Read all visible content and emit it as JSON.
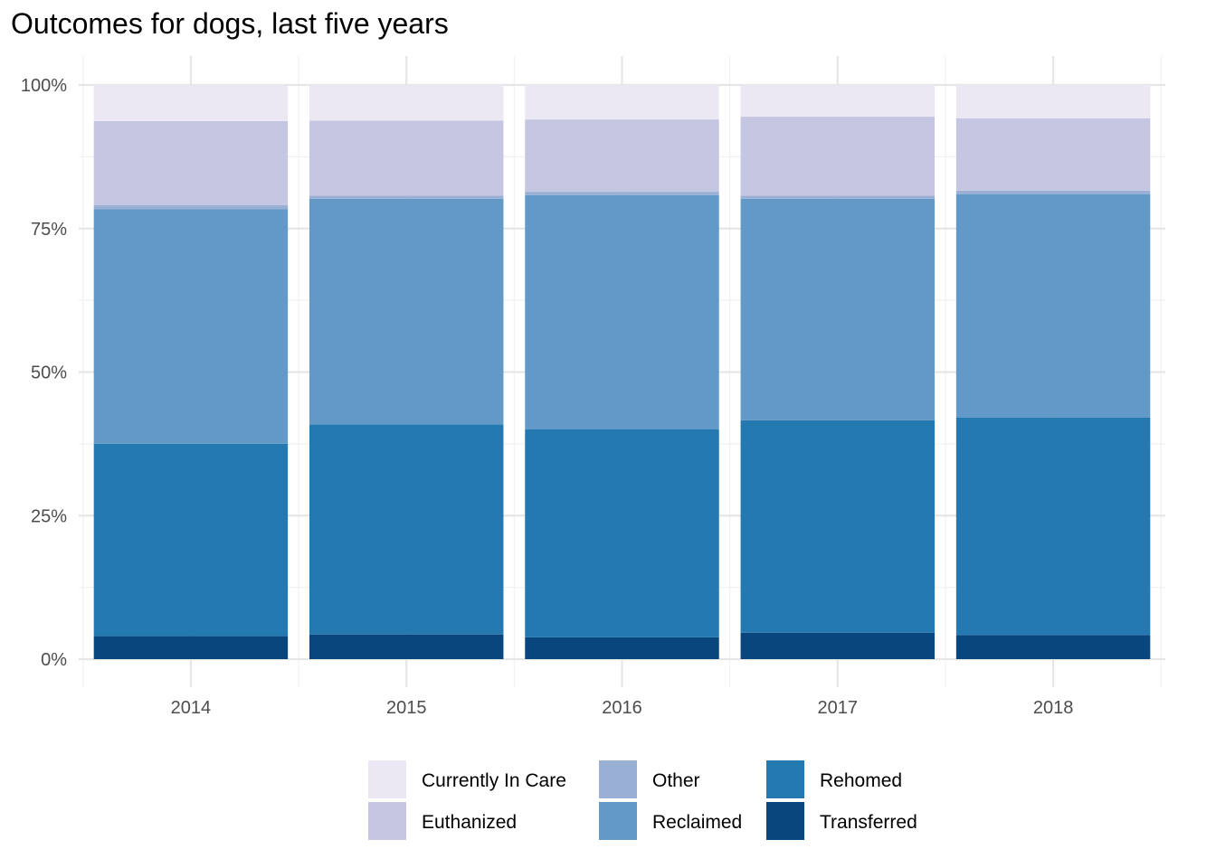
{
  "chart_data": {
    "type": "bar",
    "stacked": true,
    "normalized": true,
    "title": "Outcomes for dogs, last five years",
    "xlabel": "",
    "ylabel": "",
    "categories": [
      "2014",
      "2015",
      "2016",
      "2017",
      "2018"
    ],
    "ylim": [
      0,
      100
    ],
    "y_ticks": [
      0,
      25,
      50,
      75,
      100
    ],
    "y_tick_labels": [
      "0%",
      "25%",
      "50%",
      "75%",
      "100%"
    ],
    "grid": true,
    "legend_position": "bottom",
    "series": [
      {
        "name": "Transferred",
        "color": "#08467d",
        "values": [
          4.0,
          4.3,
          3.8,
          4.6,
          4.2
        ]
      },
      {
        "name": "Rehomed",
        "color": "#2479b1",
        "values": [
          33.5,
          36.6,
          36.2,
          37.0,
          37.9
        ]
      },
      {
        "name": "Reclaimed",
        "color": "#6299c6",
        "values": [
          40.9,
          39.3,
          40.8,
          38.6,
          38.9
        ]
      },
      {
        "name": "Other",
        "color": "#99b0d4",
        "values": [
          0.7,
          0.5,
          0.6,
          0.5,
          0.6
        ]
      },
      {
        "name": "Euthanized",
        "color": "#c5c6e1",
        "values": [
          14.6,
          13.1,
          12.6,
          13.8,
          12.6
        ]
      },
      {
        "name": "Currently In Care",
        "color": "#ebe8f4",
        "values": [
          6.3,
          6.2,
          6.0,
          5.5,
          5.8
        ]
      }
    ],
    "legend_order": [
      "Currently In Care",
      "Euthanized",
      "Other",
      "Reclaimed",
      "Rehomed",
      "Transferred"
    ]
  }
}
